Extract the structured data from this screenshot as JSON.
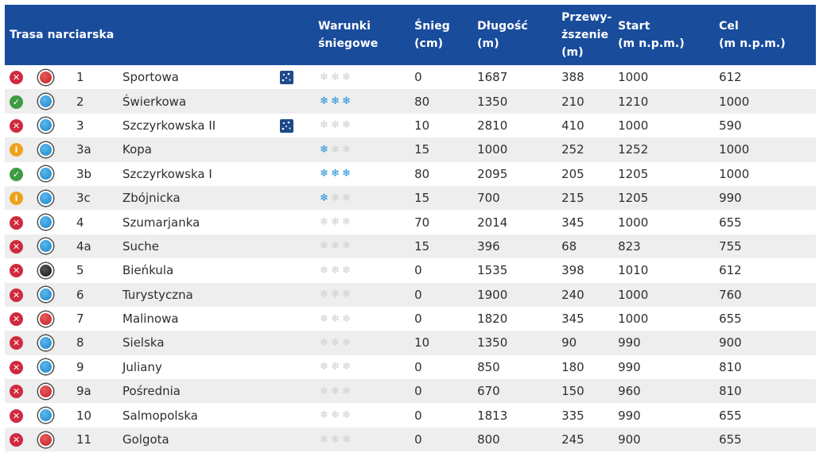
{
  "header": {
    "trail": "Trasa narciarska",
    "conditions": [
      "Warunki",
      "śniegowe"
    ],
    "snow": [
      "Śnieg",
      "(cm)"
    ],
    "length": [
      "Długość",
      "(m)"
    ],
    "elevation": [
      "Przewy-",
      "ższenie",
      "(m)"
    ],
    "start": [
      "Start",
      "(m n.p.m.)"
    ],
    "finish": [
      "Cel",
      "(m n.p.m.)"
    ]
  },
  "colors": {
    "header_bg": "#1a4c9c",
    "closed": "#d02a3f",
    "open": "#3f9a44",
    "info": "#eea21c",
    "red_slope": "#c41e25",
    "blue_slope": "#1b86c8",
    "black_slope": "#141414",
    "snow_on": "#1c8fd6",
    "snow_off": "#cfcfcf"
  },
  "rows": [
    {
      "status": "closed",
      "difficulty": "red",
      "num": "1",
      "name": "Sportowa",
      "night": true,
      "snow_level": 0,
      "snow": "0",
      "length": "1687",
      "elevation": "388",
      "start": "1000",
      "finish": "612"
    },
    {
      "status": "open",
      "difficulty": "blue",
      "num": "2",
      "name": "Świerkowa",
      "night": false,
      "snow_level": 3,
      "snow": "80",
      "length": "1350",
      "elevation": "210",
      "start": "1210",
      "finish": "1000"
    },
    {
      "status": "closed",
      "difficulty": "blue",
      "num": "3",
      "name": "Szczyrkowska II",
      "night": true,
      "snow_level": 0,
      "snow": "10",
      "length": "2810",
      "elevation": "410",
      "start": "1000",
      "finish": "590"
    },
    {
      "status": "info",
      "difficulty": "blue",
      "num": "3a",
      "name": "Kopa",
      "night": false,
      "snow_level": 1,
      "snow": "15",
      "length": "1000",
      "elevation": "252",
      "start": "1252",
      "finish": "1000"
    },
    {
      "status": "open",
      "difficulty": "blue",
      "num": "3b",
      "name": "Szczyrkowska I",
      "night": false,
      "snow_level": 3,
      "snow": "80",
      "length": "2095",
      "elevation": "205",
      "start": "1205",
      "finish": "1000"
    },
    {
      "status": "info",
      "difficulty": "blue",
      "num": "3c",
      "name": "Zbójnicka",
      "night": false,
      "snow_level": 1,
      "snow": "15",
      "length": "700",
      "elevation": "215",
      "start": "1205",
      "finish": "990"
    },
    {
      "status": "closed",
      "difficulty": "blue",
      "num": "4",
      "name": "Szumarjanka",
      "night": false,
      "snow_level": 0,
      "snow": "70",
      "length": "2014",
      "elevation": "345",
      "start": "1000",
      "finish": "655"
    },
    {
      "status": "closed",
      "difficulty": "blue",
      "num": "4a",
      "name": "Suche",
      "night": false,
      "snow_level": 0,
      "snow": "15",
      "length": "396",
      "elevation": "68",
      "start": "823",
      "finish": "755"
    },
    {
      "status": "closed",
      "difficulty": "black",
      "num": "5",
      "name": "Bieńkula",
      "night": false,
      "snow_level": 0,
      "snow": "0",
      "length": "1535",
      "elevation": "398",
      "start": "1010",
      "finish": "612"
    },
    {
      "status": "closed",
      "difficulty": "blue",
      "num": "6",
      "name": "Turystyczna",
      "night": false,
      "snow_level": 0,
      "snow": "0",
      "length": "1900",
      "elevation": "240",
      "start": "1000",
      "finish": "760"
    },
    {
      "status": "closed",
      "difficulty": "red",
      "num": "7",
      "name": "Malinowa",
      "night": false,
      "snow_level": 0,
      "snow": "0",
      "length": "1820",
      "elevation": "345",
      "start": "1000",
      "finish": "655"
    },
    {
      "status": "closed",
      "difficulty": "blue",
      "num": "8",
      "name": "Sielska",
      "night": false,
      "snow_level": 0,
      "snow": "10",
      "length": "1350",
      "elevation": "90",
      "start": "990",
      "finish": "900"
    },
    {
      "status": "closed",
      "difficulty": "blue",
      "num": "9",
      "name": "Juliany",
      "night": false,
      "snow_level": 0,
      "snow": "0",
      "length": "850",
      "elevation": "180",
      "start": "990",
      "finish": "810"
    },
    {
      "status": "closed",
      "difficulty": "red",
      "num": "9a",
      "name": "Pośrednia",
      "night": false,
      "snow_level": 0,
      "snow": "0",
      "length": "670",
      "elevation": "150",
      "start": "960",
      "finish": "810"
    },
    {
      "status": "closed",
      "difficulty": "blue",
      "num": "10",
      "name": "Salmopolska",
      "night": false,
      "snow_level": 0,
      "snow": "0",
      "length": "1813",
      "elevation": "335",
      "start": "990",
      "finish": "655"
    },
    {
      "status": "closed",
      "difficulty": "red",
      "num": "11",
      "name": "Golgota",
      "night": false,
      "snow_level": 0,
      "snow": "0",
      "length": "800",
      "elevation": "245",
      "start": "900",
      "finish": "655"
    }
  ]
}
